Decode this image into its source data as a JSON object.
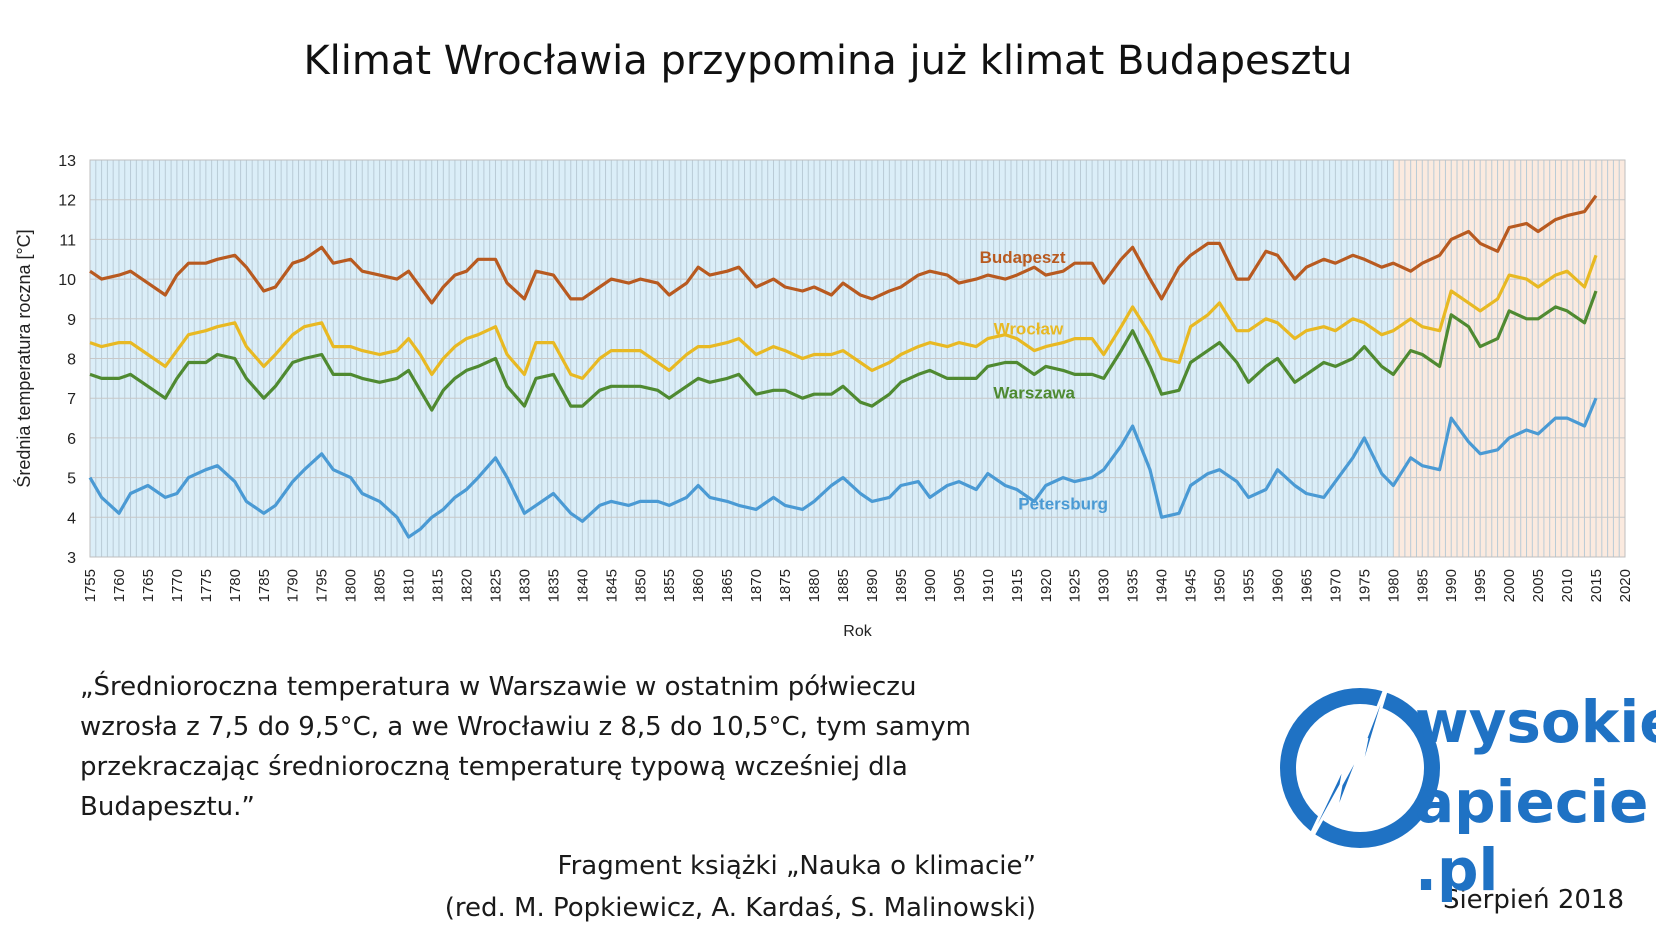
{
  "title": "Klimat Wrocławia przypomina już klimat Budapesztu",
  "chart_data": {
    "type": "line",
    "xlabel": "Rok",
    "ylabel": "Średnia temperatura roczna [°C]",
    "xlim": [
      1755,
      2020
    ],
    "ylim": [
      3,
      13
    ],
    "xticks": [
      1755,
      1760,
      1765,
      1770,
      1775,
      1780,
      1785,
      1790,
      1795,
      1800,
      1805,
      1810,
      1815,
      1820,
      1825,
      1830,
      1835,
      1840,
      1845,
      1850,
      1855,
      1860,
      1865,
      1870,
      1875,
      1880,
      1885,
      1890,
      1895,
      1900,
      1905,
      1910,
      1915,
      1920,
      1925,
      1930,
      1935,
      1940,
      1945,
      1950,
      1955,
      1960,
      1965,
      1970,
      1975,
      1980,
      1985,
      1990,
      1995,
      2000,
      2005,
      2010,
      2015,
      2020
    ],
    "yticks": [
      3,
      4,
      5,
      6,
      7,
      8,
      9,
      10,
      11,
      12,
      13
    ],
    "grid": true,
    "background_bands": [
      {
        "from": 1755,
        "to": 1980,
        "color": "#dbeef8"
      },
      {
        "from": 1980,
        "to": 2020,
        "color": "#fbeadf"
      }
    ],
    "series": [
      {
        "name": "Budapeszt",
        "color": "#b85a20",
        "x": [
          1755,
          1757,
          1760,
          1762,
          1765,
          1768,
          1770,
          1772,
          1775,
          1777,
          1780,
          1782,
          1785,
          1787,
          1790,
          1792,
          1795,
          1797,
          1800,
          1802,
          1805,
          1808,
          1810,
          1812,
          1814,
          1816,
          1818,
          1820,
          1822,
          1825,
          1827,
          1830,
          1832,
          1835,
          1838,
          1840,
          1843,
          1845,
          1848,
          1850,
          1853,
          1855,
          1858,
          1860,
          1862,
          1865,
          1867,
          1870,
          1873,
          1875,
          1878,
          1880,
          1883,
          1885,
          1888,
          1890,
          1893,
          1895,
          1898,
          1900,
          1903,
          1905,
          1908,
          1910,
          1913,
          1915,
          1918,
          1920,
          1923,
          1925,
          1928,
          1930,
          1933,
          1935,
          1938,
          1940,
          1943,
          1945,
          1948,
          1950,
          1953,
          1955,
          1958,
          1960,
          1963,
          1965,
          1968,
          1970,
          1973,
          1975,
          1978,
          1980,
          1983,
          1985,
          1988,
          1990,
          1993,
          1995,
          1998,
          2000,
          2003,
          2005,
          2008,
          2010,
          2013,
          2015
        ],
        "y": [
          10.2,
          10,
          10.1,
          10.2,
          9.9,
          9.6,
          10.1,
          10.4,
          10.4,
          10.5,
          10.6,
          10.3,
          9.7,
          9.8,
          10.4,
          10.5,
          10.8,
          10.4,
          10.5,
          10.2,
          10.1,
          10,
          10.2,
          9.8,
          9.4,
          9.8,
          10.1,
          10.2,
          10.5,
          10.5,
          9.9,
          9.5,
          10.2,
          10.1,
          9.5,
          9.5,
          9.8,
          10,
          9.9,
          10,
          9.9,
          9.6,
          9.9,
          10.3,
          10.1,
          10.2,
          10.3,
          9.8,
          10,
          9.8,
          9.7,
          9.8,
          9.6,
          9.9,
          9.6,
          9.5,
          9.7,
          9.8,
          10.1,
          10.2,
          10.1,
          9.9,
          10,
          10.1,
          10,
          10.1,
          10.3,
          10.1,
          10.2,
          10.4,
          10.4,
          9.9,
          10.5,
          10.8,
          10,
          9.5,
          10.3,
          10.6,
          10.9,
          10.9,
          10,
          10,
          10.7,
          10.6,
          10,
          10.3,
          10.5,
          10.4,
          10.6,
          10.5,
          10.3,
          10.4,
          10.2,
          10.4,
          10.6,
          11,
          11.2,
          10.9,
          10.7,
          11.3,
          11.4,
          11.2,
          11.5,
          11.6,
          11.7,
          12.1
        ]
      },
      {
        "name": "Wrocław",
        "color": "#e8b923",
        "x": [
          1755,
          1757,
          1760,
          1762,
          1765,
          1768,
          1770,
          1772,
          1775,
          1777,
          1780,
          1782,
          1785,
          1787,
          1790,
          1792,
          1795,
          1797,
          1800,
          1802,
          1805,
          1808,
          1810,
          1812,
          1814,
          1816,
          1818,
          1820,
          1822,
          1825,
          1827,
          1830,
          1832,
          1835,
          1838,
          1840,
          1843,
          1845,
          1848,
          1850,
          1853,
          1855,
          1858,
          1860,
          1862,
          1865,
          1867,
          1870,
          1873,
          1875,
          1878,
          1880,
          1883,
          1885,
          1888,
          1890,
          1893,
          1895,
          1898,
          1900,
          1903,
          1905,
          1908,
          1910,
          1913,
          1915,
          1918,
          1920,
          1923,
          1925,
          1928,
          1930,
          1933,
          1935,
          1938,
          1940,
          1943,
          1945,
          1948,
          1950,
          1953,
          1955,
          1958,
          1960,
          1963,
          1965,
          1968,
          1970,
          1973,
          1975,
          1978,
          1980,
          1983,
          1985,
          1988,
          1990,
          1993,
          1995,
          1998,
          2000,
          2003,
          2005,
          2008,
          2010,
          2013,
          2015
        ],
        "y": [
          8.4,
          8.3,
          8.4,
          8.4,
          8.1,
          7.8,
          8.2,
          8.6,
          8.7,
          8.8,
          8.9,
          8.3,
          7.8,
          8.1,
          8.6,
          8.8,
          8.9,
          8.3,
          8.3,
          8.2,
          8.1,
          8.2,
          8.5,
          8.1,
          7.6,
          8,
          8.3,
          8.5,
          8.6,
          8.8,
          8.1,
          7.6,
          8.4,
          8.4,
          7.6,
          7.5,
          8,
          8.2,
          8.2,
          8.2,
          7.9,
          7.7,
          8.1,
          8.3,
          8.3,
          8.4,
          8.5,
          8.1,
          8.3,
          8.2,
          8,
          8.1,
          8.1,
          8.2,
          7.9,
          7.7,
          7.9,
          8.1,
          8.3,
          8.4,
          8.3,
          8.4,
          8.3,
          8.5,
          8.6,
          8.5,
          8.2,
          8.3,
          8.4,
          8.5,
          8.5,
          8.1,
          8.8,
          9.3,
          8.6,
          8,
          7.9,
          8.8,
          9.1,
          9.4,
          8.7,
          8.7,
          9,
          8.9,
          8.5,
          8.7,
          8.8,
          8.7,
          9,
          8.9,
          8.6,
          8.7,
          9,
          8.8,
          8.7,
          9.7,
          9.4,
          9.2,
          9.5,
          10.1,
          10,
          9.8,
          10.1,
          10.2,
          9.8,
          10.6
        ]
      },
      {
        "name": "Warszawa",
        "color": "#4f8a31",
        "x": [
          1755,
          1757,
          1760,
          1762,
          1765,
          1768,
          1770,
          1772,
          1775,
          1777,
          1780,
          1782,
          1785,
          1787,
          1790,
          1792,
          1795,
          1797,
          1800,
          1802,
          1805,
          1808,
          1810,
          1812,
          1814,
          1816,
          1818,
          1820,
          1822,
          1825,
          1827,
          1830,
          1832,
          1835,
          1838,
          1840,
          1843,
          1845,
          1848,
          1850,
          1853,
          1855,
          1858,
          1860,
          1862,
          1865,
          1867,
          1870,
          1873,
          1875,
          1878,
          1880,
          1883,
          1885,
          1888,
          1890,
          1893,
          1895,
          1898,
          1900,
          1903,
          1905,
          1908,
          1910,
          1913,
          1915,
          1918,
          1920,
          1923,
          1925,
          1928,
          1930,
          1933,
          1935,
          1938,
          1940,
          1943,
          1945,
          1948,
          1950,
          1953,
          1955,
          1958,
          1960,
          1963,
          1965,
          1968,
          1970,
          1973,
          1975,
          1978,
          1980,
          1983,
          1985,
          1988,
          1990,
          1993,
          1995,
          1998,
          2000,
          2003,
          2005,
          2008,
          2010,
          2013,
          2015
        ],
        "y": [
          7.6,
          7.5,
          7.5,
          7.6,
          7.3,
          7,
          7.5,
          7.9,
          7.9,
          8.1,
          8,
          7.5,
          7,
          7.3,
          7.9,
          8,
          8.1,
          7.6,
          7.6,
          7.5,
          7.4,
          7.5,
          7.7,
          7.2,
          6.7,
          7.2,
          7.5,
          7.7,
          7.8,
          8,
          7.3,
          6.8,
          7.5,
          7.6,
          6.8,
          6.8,
          7.2,
          7.3,
          7.3,
          7.3,
          7.2,
          7,
          7.3,
          7.5,
          7.4,
          7.5,
          7.6,
          7.1,
          7.2,
          7.2,
          7,
          7.1,
          7.1,
          7.3,
          6.9,
          6.8,
          7.1,
          7.4,
          7.6,
          7.7,
          7.5,
          7.5,
          7.5,
          7.8,
          7.9,
          7.9,
          7.6,
          7.8,
          7.7,
          7.6,
          7.6,
          7.5,
          8.2,
          8.7,
          7.8,
          7.1,
          7.2,
          7.9,
          8.2,
          8.4,
          7.9,
          7.4,
          7.8,
          8,
          7.4,
          7.6,
          7.9,
          7.8,
          8,
          8.3,
          7.8,
          7.6,
          8.2,
          8.1,
          7.8,
          9.1,
          8.8,
          8.3,
          8.5,
          9.2,
          9,
          9,
          9.3,
          9.2,
          8.9,
          9.7
        ]
      },
      {
        "name": "Petersburg",
        "color": "#4a9ad4",
        "x": [
          1755,
          1757,
          1760,
          1762,
          1765,
          1768,
          1770,
          1772,
          1775,
          1777,
          1780,
          1782,
          1785,
          1787,
          1790,
          1792,
          1795,
          1797,
          1800,
          1802,
          1805,
          1808,
          1810,
          1812,
          1814,
          1816,
          1818,
          1820,
          1822,
          1825,
          1827,
          1830,
          1832,
          1835,
          1838,
          1840,
          1843,
          1845,
          1848,
          1850,
          1853,
          1855,
          1858,
          1860,
          1862,
          1865,
          1867,
          1870,
          1873,
          1875,
          1878,
          1880,
          1883,
          1885,
          1888,
          1890,
          1893,
          1895,
          1898,
          1900,
          1903,
          1905,
          1908,
          1910,
          1913,
          1915,
          1918,
          1920,
          1923,
          1925,
          1928,
          1930,
          1933,
          1935,
          1938,
          1940,
          1943,
          1945,
          1948,
          1950,
          1953,
          1955,
          1958,
          1960,
          1963,
          1965,
          1968,
          1970,
          1973,
          1975,
          1978,
          1980,
          1983,
          1985,
          1988,
          1990,
          1993,
          1995,
          1998,
          2000,
          2003,
          2005,
          2008,
          2010,
          2013,
          2015
        ],
        "y": [
          5,
          4.5,
          4.1,
          4.6,
          4.8,
          4.5,
          4.6,
          5,
          5.2,
          5.3,
          4.9,
          4.4,
          4.1,
          4.3,
          4.9,
          5.2,
          5.6,
          5.2,
          5,
          4.6,
          4.4,
          4,
          3.5,
          3.7,
          4,
          4.2,
          4.5,
          4.7,
          5,
          5.5,
          5,
          4.1,
          4.3,
          4.6,
          4.1,
          3.9,
          4.3,
          4.4,
          4.3,
          4.4,
          4.4,
          4.3,
          4.5,
          4.8,
          4.5,
          4.4,
          4.3,
          4.2,
          4.5,
          4.3,
          4.2,
          4.4,
          4.8,
          5,
          4.6,
          4.4,
          4.5,
          4.8,
          4.9,
          4.5,
          4.8,
          4.9,
          4.7,
          5.1,
          4.8,
          4.7,
          4.4,
          4.8,
          5,
          4.9,
          5,
          5.2,
          5.8,
          6.3,
          5.2,
          4,
          4.1,
          4.8,
          5.1,
          5.2,
          4.9,
          4.5,
          4.7,
          5.2,
          4.8,
          4.6,
          4.5,
          4.9,
          5.5,
          6,
          5.1,
          4.8,
          5.5,
          5.3,
          5.2,
          6.5,
          5.9,
          5.6,
          5.7,
          6,
          6.2,
          6.1,
          6.5,
          6.5,
          6.3,
          7
        ]
      }
    ]
  },
  "quote": {
    "lines": [
      "„Średnioroczna temperatura w Warszawie w ostatnim półwieczu",
      "wzrosła z 7,5 do 9,5°C, a we Wrocławiu z 8,5 do 10,5°C, tym samym",
      "przekraczając średnioroczną temperaturę typową wcześniej dla",
      "Budapesztu.”"
    ]
  },
  "source": {
    "line1": "Fragment książki „Nauka o klimacie”",
    "line2": "(red. M. Popkiewicz, A. Kardaś, S. Malinowski)"
  },
  "date": "Sierpień 2018",
  "logo": {
    "top": "wysokie",
    "bottom": "apiecie .pl",
    "color": "#1f72c4"
  }
}
